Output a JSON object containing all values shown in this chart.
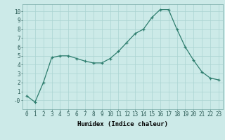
{
  "x": [
    0,
    1,
    2,
    3,
    4,
    5,
    6,
    7,
    8,
    9,
    10,
    11,
    12,
    13,
    14,
    15,
    16,
    17,
    18,
    19,
    20,
    21,
    22,
    23
  ],
  "y": [
    0.5,
    -0.2,
    2.0,
    4.8,
    5.0,
    5.0,
    4.7,
    4.4,
    4.2,
    4.2,
    4.7,
    5.5,
    6.5,
    7.5,
    8.0,
    9.3,
    10.2,
    10.2,
    8.0,
    6.0,
    4.5,
    3.2,
    2.5,
    2.3
  ],
  "line_color": "#2e7d6e",
  "marker": "+",
  "marker_size": 3.5,
  "bg_color": "#cceae8",
  "grid_color": "#aad4d2",
  "xlabel": "Humidex (Indice chaleur)",
  "xlim": [
    -0.5,
    23.5
  ],
  "ylim": [
    -1.0,
    10.8
  ],
  "yticks": [
    0,
    1,
    2,
    3,
    4,
    5,
    6,
    7,
    8,
    9,
    10
  ],
  "xticks": [
    0,
    1,
    2,
    3,
    4,
    5,
    6,
    7,
    8,
    9,
    10,
    11,
    12,
    13,
    14,
    15,
    16,
    17,
    18,
    19,
    20,
    21,
    22,
    23
  ],
  "axis_fontsize": 6.5,
  "tick_fontsize": 5.5
}
